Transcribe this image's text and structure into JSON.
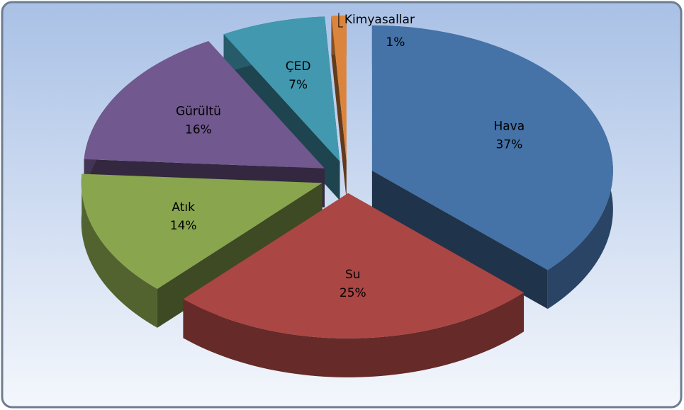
{
  "chart_data": {
    "type": "pie",
    "categories": [
      "Hava",
      "Su",
      "Atık",
      "Gürültü",
      "ÇED",
      "Kimyasallar"
    ],
    "values": [
      37,
      25,
      14,
      16,
      7,
      1
    ],
    "value_labels": [
      "37%",
      "25%",
      "14%",
      "16%",
      "7%",
      "1%"
    ],
    "colors": [
      "#4572a7",
      "#aa4643",
      "#89a54e",
      "#71588f",
      "#4198af",
      "#db843d"
    ]
  }
}
